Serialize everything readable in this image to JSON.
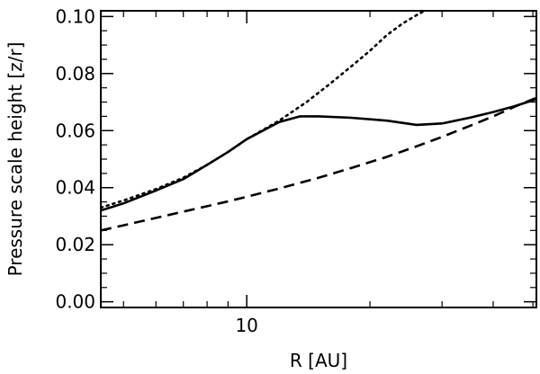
{
  "chart_data": {
    "type": "line",
    "xlabel": "R [AU]",
    "ylabel": "Pressure scale height [z/r]",
    "xscale": "log",
    "xlim": [
      4.4,
      51
    ],
    "ylim": [
      -0.002,
      0.102
    ],
    "x_tick_labels": [
      {
        "value": 10,
        "label": "10"
      }
    ],
    "x_minor_ticks": [
      5,
      6,
      7,
      8,
      9,
      20,
      30,
      40,
      50
    ],
    "y_ticks": [
      {
        "value": 0.0,
        "label": "0.00"
      },
      {
        "value": 0.02,
        "label": "0.02"
      },
      {
        "value": 0.04,
        "label": "0.04"
      },
      {
        "value": 0.06,
        "label": "0.06"
      },
      {
        "value": 0.08,
        "label": "0.08"
      },
      {
        "value": 0.1,
        "label": "0.10"
      }
    ],
    "y_minor_step": 0.005,
    "grid": false,
    "legend": "none",
    "series": [
      {
        "style": "solid",
        "color": "#000000",
        "x": [
          4.4,
          5.0,
          6.0,
          7.0,
          8.0,
          9.0,
          10.0,
          12.0,
          13.5,
          15.0,
          18.0,
          22.0,
          26.0,
          30.0,
          35.0,
          40.0,
          45.0,
          51.0
        ],
        "y": [
          0.032,
          0.0345,
          0.039,
          0.043,
          0.048,
          0.0525,
          0.057,
          0.063,
          0.065,
          0.065,
          0.0645,
          0.0635,
          0.062,
          0.0625,
          0.0645,
          0.0665,
          0.0685,
          0.071
        ]
      },
      {
        "style": "dotted",
        "color": "#000000",
        "x": [
          4.4,
          5.0,
          6.0,
          7.0,
          8.0,
          9.0,
          10.0,
          12.0,
          14.0,
          16.0,
          18.0,
          20.0,
          22.0,
          24.0,
          26.0,
          28.0,
          30.0
        ],
        "y": [
          0.033,
          0.0355,
          0.0395,
          0.0435,
          0.048,
          0.0525,
          0.057,
          0.0635,
          0.07,
          0.0765,
          0.0825,
          0.088,
          0.0935,
          0.0975,
          0.1005,
          0.103,
          0.105
        ]
      },
      {
        "style": "dashed",
        "color": "#000000",
        "x": [
          4.4,
          5.0,
          6.0,
          7.0,
          8.0,
          9.0,
          10.0,
          12.0,
          15.0,
          18.0,
          22.0,
          26.0,
          30.0,
          35.0,
          40.0,
          45.0,
          51.0
        ],
        "y": [
          0.025,
          0.0268,
          0.0294,
          0.0316,
          0.0335,
          0.0352,
          0.0368,
          0.0397,
          0.0435,
          0.0469,
          0.0508,
          0.0545,
          0.0578,
          0.0616,
          0.065,
          0.0683,
          0.0715
        ]
      }
    ]
  }
}
